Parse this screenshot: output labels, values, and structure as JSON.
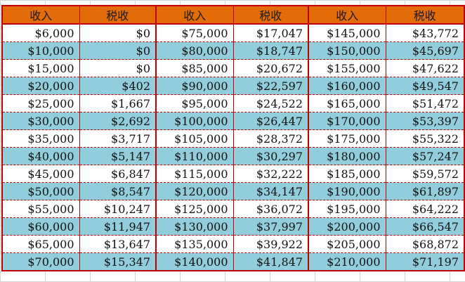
{
  "table": {
    "headers": [
      "收入",
      "税收",
      "收入",
      "税收",
      "收入",
      "税收"
    ],
    "colors": {
      "header_bg": "#e36c09",
      "band_blue": "#92cddc",
      "band_white": "#ffffff",
      "border": "#c00000"
    },
    "rows": [
      [
        "$6,000",
        "$0",
        "$75,000",
        "$17,047",
        "$145,000",
        "$43,772"
      ],
      [
        "$10,000",
        "$0",
        "$80,000",
        "$18,747",
        "$150,000",
        "$45,697"
      ],
      [
        "$15,000",
        "$0",
        "$85,000",
        "$20,672",
        "$155,000",
        "$47,622"
      ],
      [
        "$20,000",
        "$402",
        "$90,000",
        "$22,597",
        "$160,000",
        "$49,547"
      ],
      [
        "$25,000",
        "$1,667",
        "$95,000",
        "$24,522",
        "$165,000",
        "$51,472"
      ],
      [
        "$30,000",
        "$2,692",
        "$100,000",
        "$26,447",
        "$170,000",
        "$53,397"
      ],
      [
        "$35,000",
        "$3,717",
        "$105,000",
        "$28,372",
        "$175,000",
        "$55,322"
      ],
      [
        "$40,000",
        "$5,147",
        "$110,000",
        "$30,297",
        "$180,000",
        "$57,247"
      ],
      [
        "$45,000",
        "$6,847",
        "$115,000",
        "$32,222",
        "$185,000",
        "$59,572"
      ],
      [
        "$50,000",
        "$8,547",
        "$120,000",
        "$34,147",
        "$190,000",
        "$61,897"
      ],
      [
        "$55,000",
        "$10,247",
        "$125,000",
        "$36,072",
        "$195,000",
        "$64,222"
      ],
      [
        "$60,000",
        "$11,947",
        "$130,000",
        "$37,997",
        "$200,000",
        "$66,547"
      ],
      [
        "$65,000",
        "$13,647",
        "$135,000",
        "$39,922",
        "$205,000",
        "$68,872"
      ],
      [
        "$70,000",
        "$15,347",
        "$140,000",
        "$41,847",
        "$210,000",
        "$71,197"
      ]
    ]
  }
}
